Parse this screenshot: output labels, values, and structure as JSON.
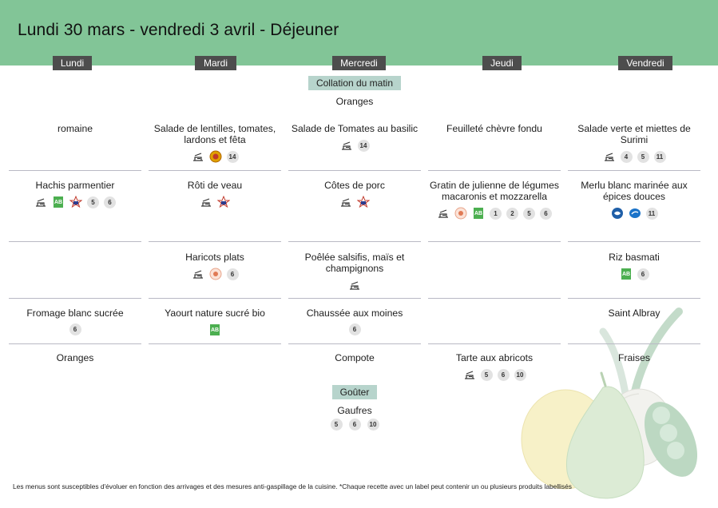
{
  "title": "Lundi 30 mars - vendredi 3 avril  - Déjeuner",
  "days": [
    "Lundi",
    "Mardi",
    "Mercredi",
    "Jeudi",
    "Vendredi"
  ],
  "collation": {
    "label": "Collation du matin",
    "item": "Oranges"
  },
  "gouter": {
    "label": "Goûter",
    "item": "Gaufres",
    "badges": [
      "5",
      "6",
      "10"
    ]
  },
  "rows": [
    {
      "name": "entree",
      "cells": [
        {
          "text": "romaine",
          "icons": []
        },
        {
          "text": "Salade de lentilles, tomates, lardons et fêta",
          "icons": [
            "fait-maison-icon",
            "aop-icon",
            "14"
          ]
        },
        {
          "text": "Salade de Tomates au basilic",
          "icons": [
            "fait-maison-icon",
            "14"
          ]
        },
        {
          "text": "Feuilleté chèvre fondu",
          "icons": []
        },
        {
          "text": "Salade verte et miettes de Surimi",
          "icons": [
            "fait-maison-icon",
            "4",
            "5",
            "11"
          ]
        }
      ]
    },
    {
      "name": "plat",
      "cells": [
        {
          "text": "Hachis parmentier",
          "icons": [
            "fait-maison-icon",
            "bio-icon",
            "vbf-icon",
            "5",
            "6"
          ]
        },
        {
          "text": "Rôti de veau",
          "icons": [
            "fait-maison-icon",
            "vbf-icon"
          ]
        },
        {
          "text": "Côtes de porc",
          "icons": [
            "fait-maison-icon",
            "vbf-icon"
          ]
        },
        {
          "text": "Gratin de julienne de légumes macaronis et mozzarella",
          "icons": [
            "fait-maison-icon",
            "local-icon",
            "bio-icon",
            "1",
            "2",
            "5",
            "6"
          ]
        },
        {
          "text": "Merlu blanc marinée aux épices douces",
          "icons": [
            "peche-durable-icon",
            "msc-icon",
            "11"
          ]
        }
      ]
    },
    {
      "name": "accompagnement",
      "cells": [
        {
          "text": "",
          "icons": []
        },
        {
          "text": "Haricots plats",
          "icons": [
            "fait-maison-icon",
            "local-icon",
            "6"
          ]
        },
        {
          "text": "Poêlée salsifis, maïs et champignons",
          "icons": [
            "fait-maison-icon"
          ]
        },
        {
          "text": "",
          "icons": []
        },
        {
          "text": "Riz basmati",
          "icons": [
            "bio-icon",
            "6"
          ]
        }
      ]
    },
    {
      "name": "laitage",
      "cells": [
        {
          "text": "Fromage blanc sucrée",
          "icons": [
            "6"
          ]
        },
        {
          "text": "Yaourt nature sucré bio",
          "icons": [
            "bio-icon"
          ]
        },
        {
          "text": "Chaussée aux moines",
          "icons": [
            "6"
          ]
        },
        {
          "text": "",
          "icons": []
        },
        {
          "text": "Saint Albray",
          "icons": []
        }
      ]
    },
    {
      "name": "dessert",
      "cells": [
        {
          "text": "Oranges",
          "icons": []
        },
        {
          "text": "",
          "icons": []
        },
        {
          "text": "Compote",
          "icons": []
        },
        {
          "text": "Tarte aux abricots",
          "icons": [
            "fait-maison-icon",
            "5",
            "6",
            "10"
          ]
        },
        {
          "text": "Fraises",
          "icons": []
        }
      ]
    }
  ],
  "footer": "Les menus sont susceptibles d'évoluer en fonction des arrivages et des mesures anti-gaspillage de la cuisine. *Chaque recette avec un label peut contenir un ou plusieurs produits labellisés"
}
